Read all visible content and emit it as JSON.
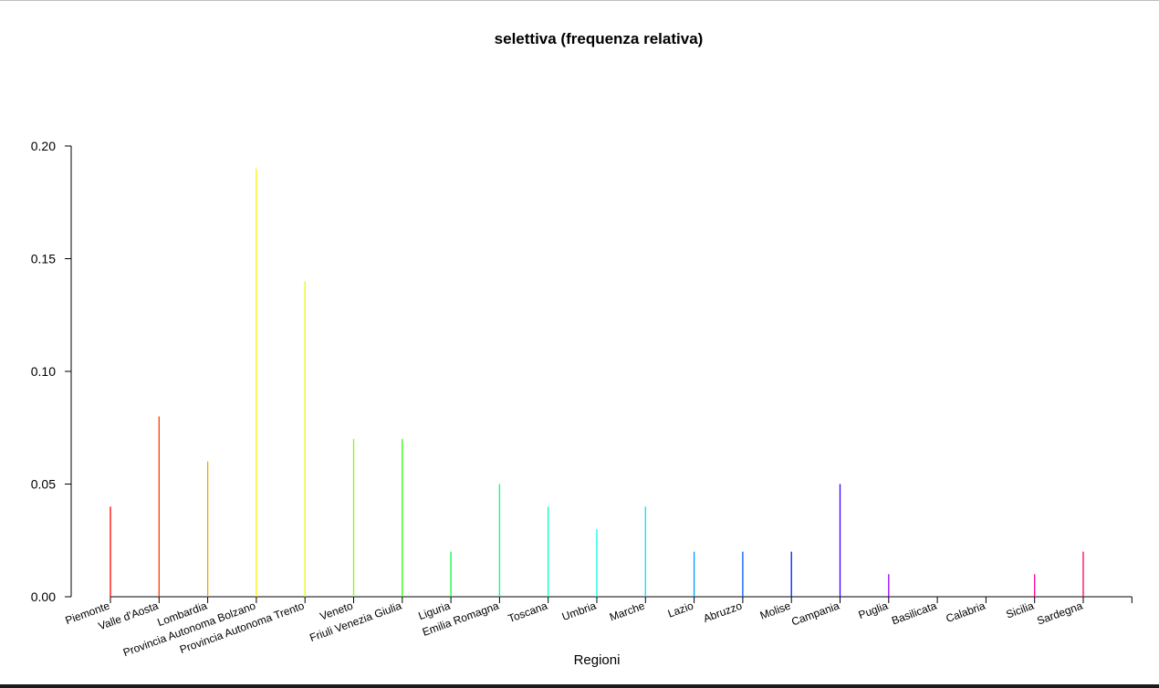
{
  "chart_data": {
    "type": "bar",
    "style": "spikes",
    "title": "selettiva  (frequenza relativa)",
    "xlabel": "Regioni",
    "ylabel": "",
    "ylim": [
      0,
      0.2
    ],
    "yticks": [
      "0.00",
      "0.05",
      "0.10",
      "0.15",
      "0.20"
    ],
    "grid": false,
    "categories": [
      "Piemonte",
      "Valle d'Aosta",
      "Lombardia",
      "Provincia Autonoma Bolzano",
      "Provincia Autonoma Trento",
      "Veneto",
      "Friuli Venezia Giulia",
      "Liguria",
      "Emilia Romagna",
      "Toscana",
      "Umbria",
      "Marche",
      "Lazio",
      "Abruzzo",
      "Molise",
      "Campania",
      "Puglia",
      "Basilicata",
      "Calabria",
      "Sicilia",
      "Sardegna"
    ],
    "values": [
      0.04,
      0.08,
      0.06,
      0.19,
      0.14,
      0.07,
      0.07,
      0.02,
      0.05,
      0.04,
      0.03,
      0.04,
      0.02,
      0.02,
      0.02,
      0.05,
      0.01,
      0.0,
      0.0,
      0.01,
      0.02
    ],
    "colors": [
      "#ff0000",
      "#ff3d00",
      "#ff9d00",
      "#ffef00",
      "#e6ff00",
      "#8aff00",
      "#2aff00",
      "#00ff3a",
      "#00ff7a",
      "#00ffba",
      "#00ffe6",
      "#00e0ff",
      "#009aff",
      "#0058ff",
      "#0018ff",
      "#3a00ff",
      "#9a00ff",
      "#e000ff",
      "#ff00d0",
      "#ff0090",
      "#ff0050"
    ]
  }
}
